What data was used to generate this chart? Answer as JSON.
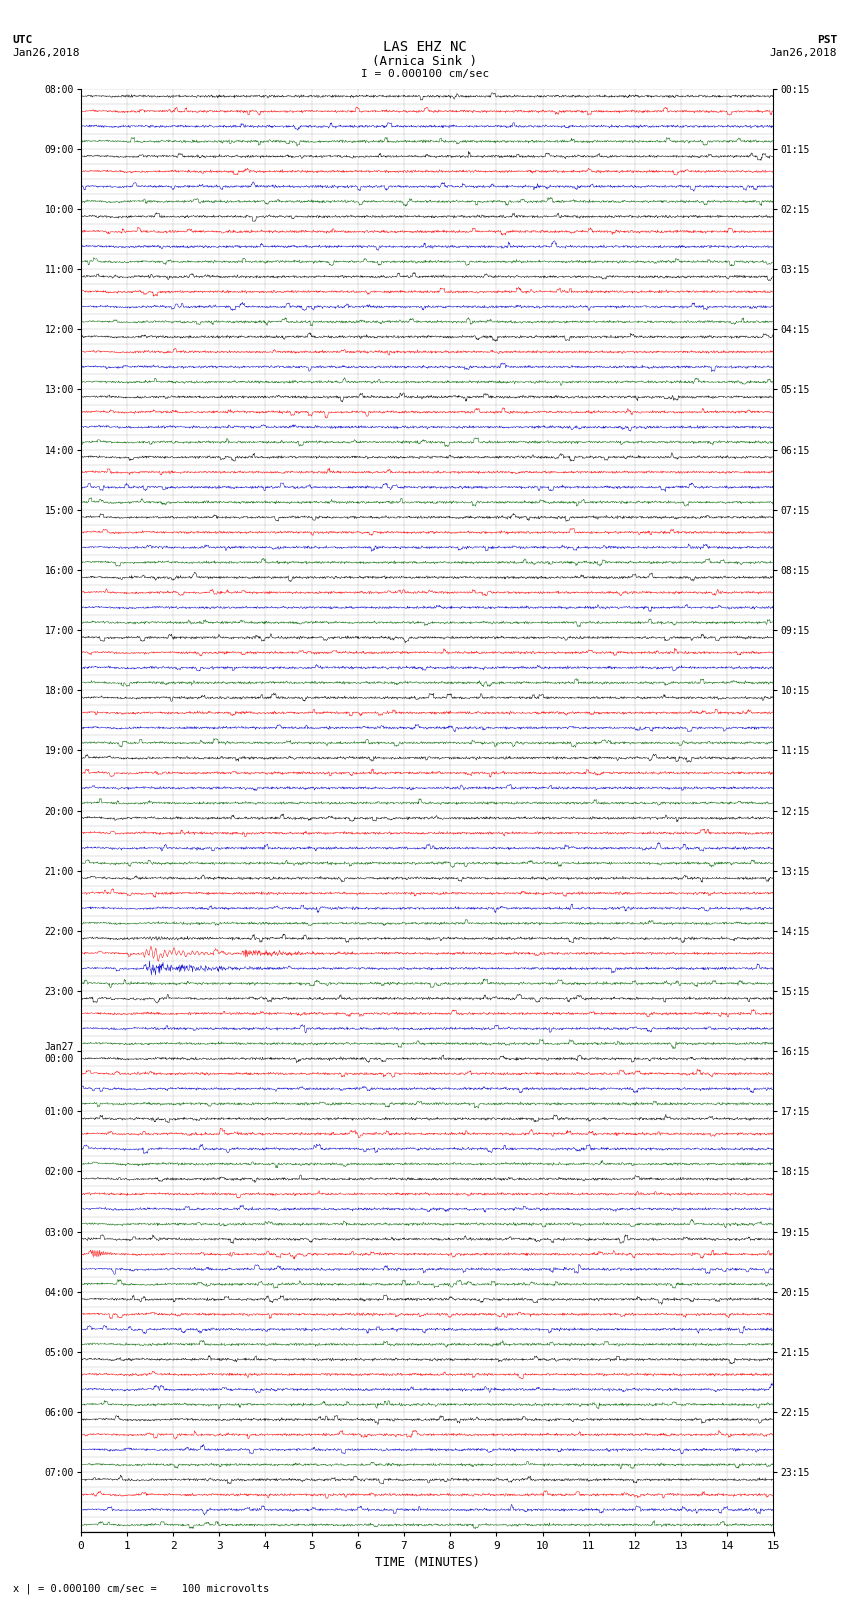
{
  "title_line1": "LAS EHZ NC",
  "title_line2": "(Arnica Sink )",
  "scale_label": "I = 0.000100 cm/sec",
  "left_header_line1": "UTC",
  "left_header_line2": "Jan26,2018",
  "right_header_line1": "PST",
  "right_header_line2": "Jan26,2018",
  "footer_label": "x | = 0.000100 cm/sec =    100 microvolts",
  "xlabel": "TIME (MINUTES)",
  "utc_labels": [
    "08:00",
    "",
    "",
    "",
    "09:00",
    "",
    "",
    "",
    "10:00",
    "",
    "",
    "",
    "11:00",
    "",
    "",
    "",
    "12:00",
    "",
    "",
    "",
    "13:00",
    "",
    "",
    "",
    "14:00",
    "",
    "",
    "",
    "15:00",
    "",
    "",
    "",
    "16:00",
    "",
    "",
    "",
    "17:00",
    "",
    "",
    "",
    "18:00",
    "",
    "",
    "",
    "19:00",
    "",
    "",
    "",
    "20:00",
    "",
    "",
    "",
    "21:00",
    "",
    "",
    "",
    "22:00",
    "",
    "",
    "",
    "23:00",
    "",
    "",
    "",
    "Jan27\n00:00",
    "",
    "",
    "",
    "01:00",
    "",
    "",
    "",
    "02:00",
    "",
    "",
    "",
    "03:00",
    "",
    "",
    "",
    "04:00",
    "",
    "",
    "",
    "05:00",
    "",
    "",
    "",
    "06:00",
    "",
    "",
    "",
    "07:00",
    "",
    "",
    ""
  ],
  "pst_labels": [
    "00:15",
    "",
    "",
    "",
    "01:15",
    "",
    "",
    "",
    "02:15",
    "",
    "",
    "",
    "03:15",
    "",
    "",
    "",
    "04:15",
    "",
    "",
    "",
    "05:15",
    "",
    "",
    "",
    "06:15",
    "",
    "",
    "",
    "07:15",
    "",
    "",
    "",
    "08:15",
    "",
    "",
    "",
    "09:15",
    "",
    "",
    "",
    "10:15",
    "",
    "",
    "",
    "11:15",
    "",
    "",
    "",
    "12:15",
    "",
    "",
    "",
    "13:15",
    "",
    "",
    "",
    "14:15",
    "",
    "",
    "",
    "15:15",
    "",
    "",
    "",
    "16:15",
    "",
    "",
    "",
    "17:15",
    "",
    "",
    "",
    "18:15",
    "",
    "",
    "",
    "19:15",
    "",
    "",
    "",
    "20:15",
    "",
    "",
    "",
    "21:15",
    "",
    "",
    "",
    "22:15",
    "",
    "",
    "",
    "23:15",
    "",
    "",
    ""
  ],
  "num_traces": 96,
  "traces_per_hour": 4,
  "xmin": 0,
  "xmax": 15,
  "bg_color": "#ffffff",
  "colors": [
    "#000000",
    "#ff0000",
    "#0000cc",
    "#006600"
  ],
  "seismic_blue_trace": 57,
  "seismic_quake_trace": 77,
  "noise_amplitude": 0.12,
  "seismic_amplitude": 0.45
}
